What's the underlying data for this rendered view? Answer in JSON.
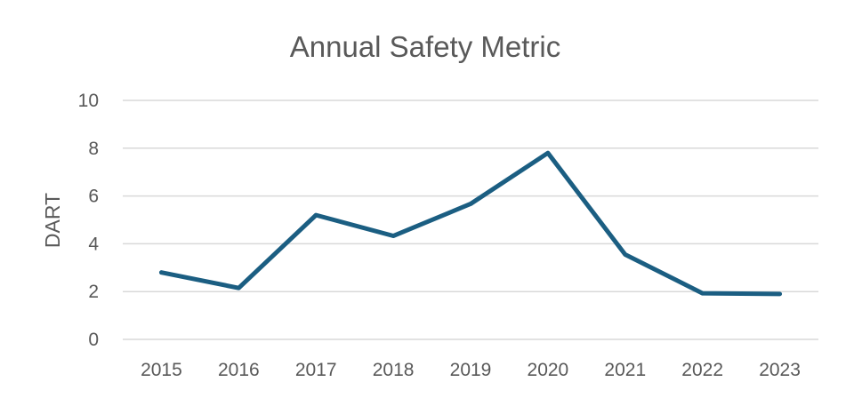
{
  "chart_data": {
    "type": "line",
    "title": "Annual Safety Metric",
    "xlabel": "",
    "ylabel": "DART",
    "categories": [
      "2015",
      "2016",
      "2017",
      "2018",
      "2019",
      "2020",
      "2021",
      "2022",
      "2023"
    ],
    "series": [
      {
        "values": [
          2.8,
          2.15,
          5.2,
          4.33,
          5.67,
          7.8,
          3.55,
          1.93,
          1.9
        ],
        "color": "#1b5e82"
      }
    ],
    "ylim": [
      0,
      10
    ],
    "yticks": [
      "0",
      "2",
      "4",
      "6",
      "8",
      "10"
    ],
    "grid": true,
    "legend": "none",
    "colors": {
      "line": "#1b5e82",
      "grid": "#d9d9d9",
      "text": "#595959"
    }
  }
}
